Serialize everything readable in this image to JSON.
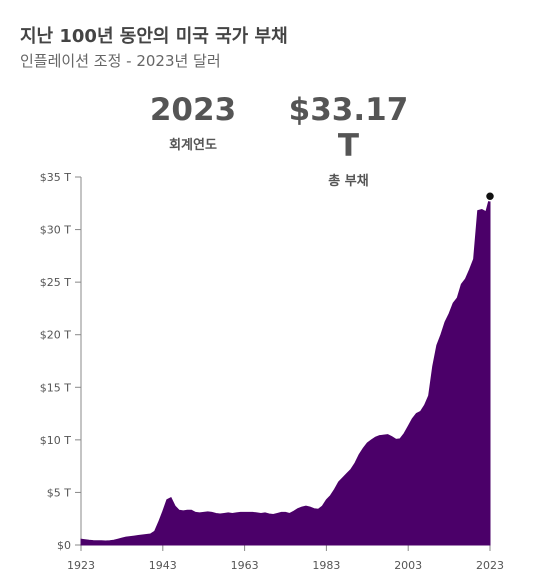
{
  "header": {
    "title": "지난 100년 동안의 미국 국가 부채",
    "subtitle": "인플레이션 조정 - 2023년 달러"
  },
  "stats": {
    "year_value": "2023",
    "year_label": "회계연도",
    "debt_value": "$33.17 T",
    "debt_label": "총 부채"
  },
  "colors": {
    "area": "#4b0069",
    "axis": "#888888",
    "marker": "#111111"
  },
  "chart_data": {
    "type": "area",
    "title": "지난 100년 동안의 미국 국가 부채",
    "subtitle": "인플레이션 조정 - 2023년 달러",
    "xlabel": "",
    "ylabel": "",
    "xlim": [
      1923,
      2023
    ],
    "ylim": [
      0,
      35
    ],
    "x_ticks": [
      "1923",
      "1943",
      "1963",
      "1983",
      "2003",
      "2023"
    ],
    "y_ticks": [
      "$0",
      "$5 T",
      "$10 T",
      "$15 T",
      "$20 T",
      "$25 T",
      "$30 T",
      "$35 T"
    ],
    "highlight": {
      "x": 2023,
      "y": 33.17
    },
    "series": [
      {
        "x": [
          1923,
          1924,
          1925,
          1926,
          1927,
          1928,
          1929,
          1930,
          1931,
          1932,
          1933,
          1934,
          1935,
          1936,
          1937,
          1938,
          1939,
          1940,
          1941,
          1942,
          1943,
          1944,
          1945,
          1946,
          1947,
          1948,
          1949,
          1950,
          1951,
          1952,
          1953,
          1954,
          1955,
          1956,
          1957,
          1958,
          1959,
          1960,
          1961,
          1962,
          1963,
          1964,
          1965,
          1966,
          1967,
          1968,
          1969,
          1970,
          1971,
          1972,
          1973,
          1974,
          1975,
          1976,
          1977,
          1978,
          1979,
          1980,
          1981,
          1982,
          1983,
          1984,
          1985,
          1986,
          1987,
          1988,
          1989,
          1990,
          1991,
          1992,
          1993,
          1994,
          1995,
          1996,
          1997,
          1998,
          1999,
          2000,
          2001,
          2002,
          2003,
          2004,
          2005,
          2006,
          2007,
          2008,
          2009,
          2010,
          2011,
          2012,
          2013,
          2014,
          2015,
          2016,
          2017,
          2018,
          2019,
          2020,
          2021,
          2022,
          2023
        ],
        "values": [
          0.55,
          0.5,
          0.45,
          0.42,
          0.4,
          0.4,
          0.38,
          0.4,
          0.45,
          0.55,
          0.65,
          0.75,
          0.8,
          0.85,
          0.9,
          0.95,
          1.0,
          1.05,
          1.3,
          2.2,
          3.2,
          4.3,
          4.5,
          3.7,
          3.3,
          3.25,
          3.3,
          3.3,
          3.1,
          3.05,
          3.1,
          3.15,
          3.1,
          3.0,
          2.95,
          3.0,
          3.05,
          3.0,
          3.05,
          3.1,
          3.1,
          3.1,
          3.1,
          3.05,
          3.0,
          3.05,
          2.95,
          2.9,
          3.0,
          3.1,
          3.1,
          3.0,
          3.2,
          3.45,
          3.6,
          3.7,
          3.6,
          3.45,
          3.4,
          3.7,
          4.3,
          4.7,
          5.3,
          6.0,
          6.4,
          6.8,
          7.2,
          7.8,
          8.6,
          9.2,
          9.7,
          10.0,
          10.25,
          10.4,
          10.45,
          10.5,
          10.3,
          10.05,
          10.1,
          10.6,
          11.3,
          12.0,
          12.5,
          12.7,
          13.3,
          14.2,
          17.0,
          19.0,
          20.0,
          21.2,
          22.0,
          23.0,
          23.5,
          24.8,
          25.3,
          26.2,
          27.2,
          31.8,
          31.9,
          31.7,
          33.17
        ]
      }
    ]
  }
}
